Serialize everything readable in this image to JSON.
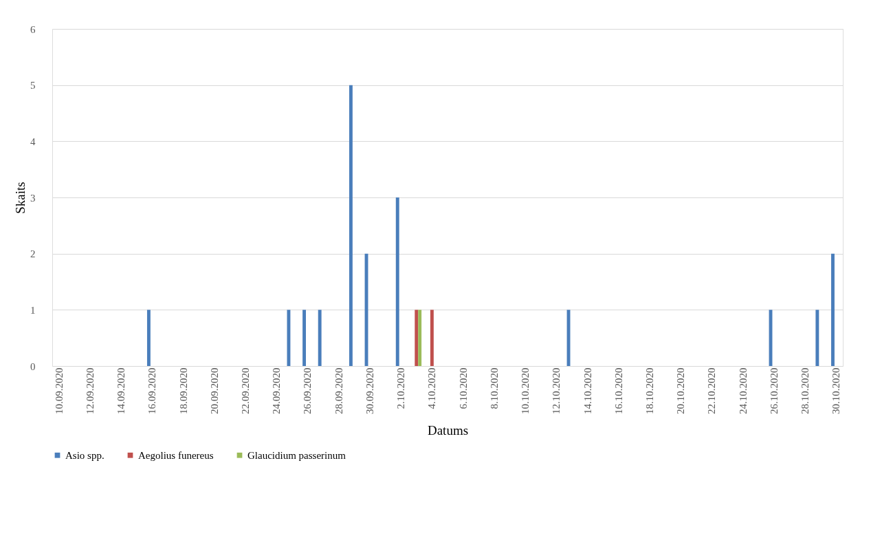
{
  "chart_data": {
    "type": "bar",
    "categories": [
      "10.09.2020",
      null,
      "12.09.2020",
      null,
      "14.09.2020",
      null,
      "16.09.2020",
      null,
      "18.09.2020",
      null,
      "20.09.2020",
      null,
      "22.09.2020",
      null,
      "24.09.2020",
      null,
      "26.09.2020",
      null,
      "28.09.2020",
      null,
      "30.09.2020",
      null,
      "2.10.2020",
      null,
      "4.10.2020",
      null,
      "6.10.2020",
      null,
      "8.10.2020",
      null,
      "10.10.2020",
      null,
      "12.10.2020",
      null,
      "14.10.2020",
      null,
      "16.10.2020",
      null,
      "18.10.2020",
      null,
      "20.10.2020",
      null,
      "22.10.2020",
      null,
      "24.10.2020",
      null,
      "26.10.2020",
      null,
      "28.10.2020",
      null,
      "30.10.2020"
    ],
    "series": [
      {
        "name": "Asio spp.",
        "color": "#4a7ebb",
        "values": [
          0,
          0,
          0,
          0,
          0,
          0,
          1,
          0,
          0,
          0,
          0,
          0,
          0,
          0,
          0,
          1,
          1,
          1,
          0,
          5,
          2,
          0,
          3,
          0,
          0,
          0,
          0,
          0,
          0,
          0,
          0,
          0,
          0,
          1,
          0,
          0,
          0,
          0,
          0,
          0,
          0,
          0,
          0,
          0,
          0,
          0,
          1,
          0,
          0,
          1,
          2
        ]
      },
      {
        "name": "Aegolius funereus",
        "color": "#c0504d",
        "values": [
          0,
          0,
          0,
          0,
          0,
          0,
          0,
          0,
          0,
          0,
          0,
          0,
          0,
          0,
          0,
          0,
          0,
          0,
          0,
          0,
          0,
          0,
          0,
          1,
          1,
          0,
          0,
          0,
          0,
          0,
          0,
          0,
          0,
          0,
          0,
          0,
          0,
          0,
          0,
          0,
          0,
          0,
          0,
          0,
          0,
          0,
          0,
          0,
          0,
          0,
          0
        ]
      },
      {
        "name": "Glaucidium passerinum",
        "color": "#9bbb59",
        "values": [
          0,
          0,
          0,
          0,
          0,
          0,
          0,
          0,
          0,
          0,
          0,
          0,
          0,
          0,
          0,
          0,
          0,
          0,
          0,
          0,
          0,
          0,
          0,
          1,
          0,
          0,
          0,
          0,
          0,
          0,
          0,
          0,
          0,
          0,
          0,
          0,
          0,
          0,
          0,
          0,
          0,
          0,
          0,
          0,
          0,
          0,
          0,
          0,
          0,
          0,
          0
        ]
      }
    ],
    "xlabel": "Datums",
    "ylabel": "Skaits",
    "ylim": [
      0,
      6
    ],
    "yticks": [
      0,
      1,
      2,
      3,
      4,
      5,
      6
    ],
    "grid": "y",
    "legend": "bottom"
  }
}
